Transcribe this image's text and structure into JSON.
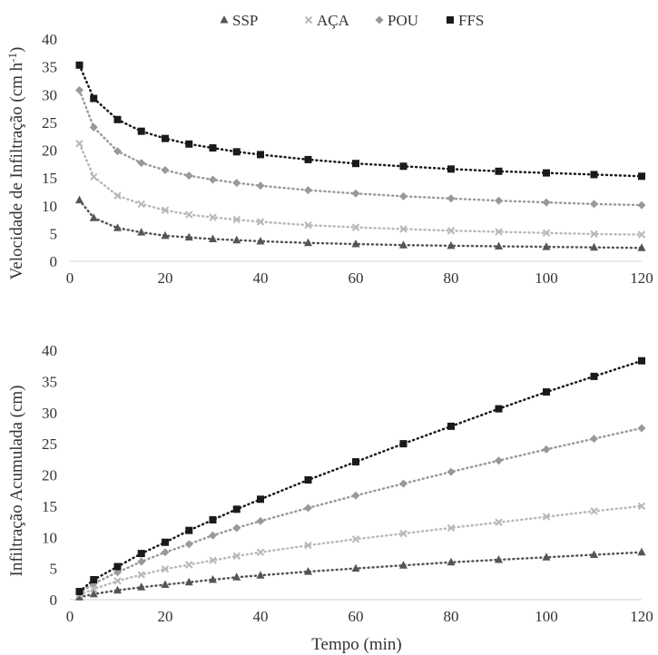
{
  "legend": {
    "items": [
      {
        "name": "SSP",
        "marker": "triangle",
        "color": "#555555"
      },
      {
        "name": "AÇA",
        "marker": "x",
        "color": "#b8b8b8"
      },
      {
        "name": "POU",
        "marker": "diamond",
        "color": "#999999"
      },
      {
        "name": "FFS",
        "marker": "square",
        "color": "#1a1a1a"
      }
    ]
  },
  "chart_data": [
    {
      "type": "line",
      "ylabel": "Velocidade de Infiltração (cm h-1)",
      "xlabel": "",
      "xlim": [
        0,
        120
      ],
      "ylim": [
        0,
        40
      ],
      "xticks": [
        0,
        20,
        40,
        60,
        80,
        100,
        120
      ],
      "yticks": [
        0,
        5,
        10,
        15,
        20,
        25,
        30,
        35,
        40
      ],
      "grid": false,
      "legend_position": "top-center",
      "line_style": "dotted",
      "x": [
        2,
        5,
        10,
        15,
        20,
        25,
        30,
        35,
        40,
        50,
        60,
        70,
        80,
        90,
        100,
        110,
        120
      ],
      "series": [
        {
          "name": "SSP",
          "values": [
            11.0,
            7.8,
            6.0,
            5.2,
            4.6,
            4.3,
            4.0,
            3.8,
            3.6,
            3.3,
            3.1,
            2.9,
            2.8,
            2.7,
            2.6,
            2.5,
            2.4
          ]
        },
        {
          "name": "AÇA",
          "values": [
            21.2,
            15.2,
            11.8,
            10.3,
            9.2,
            8.4,
            7.9,
            7.5,
            7.1,
            6.5,
            6.1,
            5.8,
            5.5,
            5.3,
            5.1,
            4.9,
            4.8
          ]
        },
        {
          "name": "POU",
          "values": [
            30.8,
            24.1,
            19.8,
            17.7,
            16.4,
            15.4,
            14.7,
            14.1,
            13.6,
            12.8,
            12.2,
            11.7,
            11.3,
            10.9,
            10.6,
            10.3,
            10.1
          ]
        },
        {
          "name": "FFS",
          "values": [
            35.3,
            29.3,
            25.5,
            23.4,
            22.1,
            21.1,
            20.4,
            19.7,
            19.2,
            18.3,
            17.6,
            17.1,
            16.6,
            16.2,
            15.9,
            15.6,
            15.3
          ]
        }
      ]
    },
    {
      "type": "line",
      "ylabel": "Infiltração Acumulada (cm)",
      "xlabel": "Tempo (min)",
      "xlim": [
        0,
        120
      ],
      "ylim": [
        0,
        40
      ],
      "xticks": [
        0,
        20,
        40,
        60,
        80,
        100,
        120
      ],
      "yticks": [
        0,
        5,
        10,
        15,
        20,
        25,
        30,
        35,
        40
      ],
      "grid": false,
      "line_style": "dotted",
      "x": [
        2,
        5,
        10,
        15,
        20,
        25,
        30,
        35,
        40,
        50,
        60,
        70,
        80,
        90,
        100,
        110,
        120
      ],
      "series": [
        {
          "name": "SSP",
          "values": [
            0.4,
            0.9,
            1.5,
            2.0,
            2.4,
            2.8,
            3.2,
            3.6,
            3.9,
            4.5,
            5.0,
            5.5,
            6.0,
            6.4,
            6.8,
            7.2,
            7.6
          ]
        },
        {
          "name": "AÇA",
          "values": [
            0.8,
            1.7,
            3.0,
            4.0,
            4.9,
            5.6,
            6.3,
            7.0,
            7.6,
            8.7,
            9.7,
            10.6,
            11.5,
            12.4,
            13.3,
            14.2,
            15.0
          ]
        },
        {
          "name": "POU",
          "values": [
            1.1,
            2.6,
            4.4,
            6.1,
            7.6,
            8.9,
            10.3,
            11.5,
            12.6,
            14.7,
            16.7,
            18.6,
            20.5,
            22.3,
            24.1,
            25.8,
            27.5
          ]
        },
        {
          "name": "FFS",
          "values": [
            1.3,
            3.2,
            5.3,
            7.4,
            9.2,
            11.1,
            12.8,
            14.5,
            16.1,
            19.2,
            22.1,
            25.0,
            27.8,
            30.6,
            33.3,
            35.8,
            38.3
          ]
        }
      ]
    }
  ]
}
